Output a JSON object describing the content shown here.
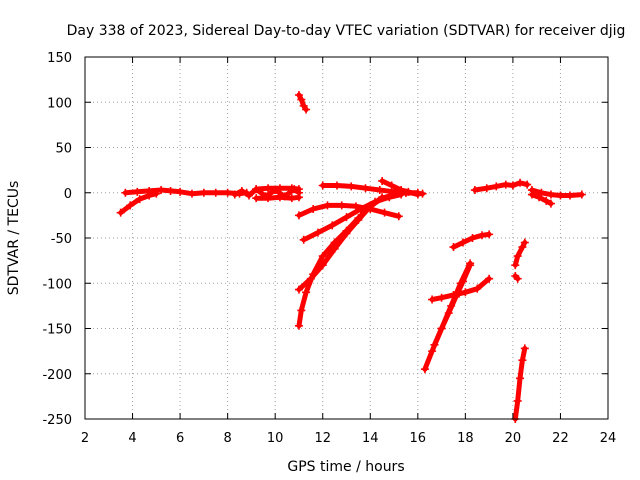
{
  "chart_data": {
    "type": "scatter",
    "title": "Day 338 of 2023, Sidereal Day-to-day VTEC variation (SDTVAR) for receiver djig",
    "xlabel": "GPS time / hours",
    "ylabel": "SDTVAR / TECUs",
    "xlim": [
      2,
      24
    ],
    "ylim": [
      -250,
      150
    ],
    "xticks": [
      2,
      4,
      6,
      8,
      10,
      12,
      14,
      16,
      18,
      20,
      22,
      24
    ],
    "yticks": [
      -250,
      -200,
      -150,
      -100,
      -50,
      0,
      50,
      100,
      150
    ],
    "grid": true,
    "marker": "+",
    "color": "#ff0000",
    "series": [
      {
        "points": [
          [
            3.5,
            -22
          ],
          [
            3.9,
            -14
          ],
          [
            4.3,
            -7
          ],
          [
            4.7,
            -3
          ],
          [
            5.0,
            -1
          ]
        ]
      },
      {
        "points": [
          [
            3.7,
            0
          ],
          [
            4.2,
            1
          ],
          [
            4.7,
            2
          ],
          [
            5.2,
            3
          ],
          [
            5.6,
            2
          ],
          [
            6.0,
            1
          ],
          [
            6.5,
            -1
          ],
          [
            7.0,
            0
          ],
          [
            7.5,
            0
          ],
          [
            8.0,
            0
          ],
          [
            8.5,
            -1
          ],
          [
            8.8,
            0
          ]
        ]
      },
      {
        "points": [
          [
            8.3,
            -2
          ],
          [
            8.6,
            2
          ],
          [
            8.9,
            -3
          ],
          [
            9.2,
            4
          ],
          [
            9.6,
            -4
          ],
          [
            10.0,
            3
          ],
          [
            10.4,
            -4
          ],
          [
            10.8,
            4
          ],
          [
            11.0,
            0
          ]
        ]
      },
      {
        "points": [
          [
            9.2,
            4
          ],
          [
            9.7,
            5
          ],
          [
            10.2,
            5
          ],
          [
            10.7,
            5
          ],
          [
            11.0,
            4
          ]
        ]
      },
      {
        "points": [
          [
            9.2,
            -6
          ],
          [
            9.7,
            -6
          ],
          [
            10.2,
            -5
          ],
          [
            10.7,
            -6
          ],
          [
            11.0,
            -5
          ]
        ]
      },
      {
        "points": [
          [
            11.0,
            108
          ],
          [
            11.1,
            103
          ],
          [
            11.2,
            96
          ],
          [
            11.3,
            92
          ]
        ]
      },
      {
        "points": [
          [
            11.0,
            -147
          ],
          [
            11.1,
            -130
          ],
          [
            11.3,
            -110
          ],
          [
            11.6,
            -90
          ],
          [
            12.0,
            -70
          ],
          [
            12.5,
            -55
          ],
          [
            13.0,
            -42
          ],
          [
            13.5,
            -28
          ],
          [
            14.0,
            -15
          ],
          [
            14.5,
            -6
          ],
          [
            15.0,
            -2
          ],
          [
            15.5,
            0
          ],
          [
            16.0,
            0
          ]
        ]
      },
      {
        "points": [
          [
            11.0,
            -107
          ],
          [
            11.5,
            -95
          ],
          [
            12.0,
            -80
          ],
          [
            12.5,
            -62
          ],
          [
            13.0,
            -45
          ],
          [
            13.5,
            -30
          ],
          [
            14.0,
            -15
          ],
          [
            14.5,
            -5
          ]
        ]
      },
      {
        "points": [
          [
            11.2,
            -52
          ],
          [
            11.8,
            -44
          ],
          [
            12.4,
            -36
          ],
          [
            13.0,
            -27
          ],
          [
            13.6,
            -18
          ],
          [
            14.2,
            -10
          ],
          [
            14.8,
            -5
          ],
          [
            15.3,
            -2
          ]
        ]
      },
      {
        "points": [
          [
            11.0,
            -25
          ],
          [
            11.6,
            -18
          ],
          [
            12.2,
            -14
          ],
          [
            12.8,
            -14
          ],
          [
            13.4,
            -15
          ],
          [
            14.0,
            -18
          ],
          [
            14.6,
            -22
          ],
          [
            15.2,
            -26
          ]
        ]
      },
      {
        "points": [
          [
            12.0,
            8
          ],
          [
            12.6,
            8
          ],
          [
            13.2,
            7
          ],
          [
            13.8,
            5
          ],
          [
            14.4,
            3
          ],
          [
            15.0,
            1
          ],
          [
            15.5,
            0
          ],
          [
            16.2,
            -1
          ]
        ]
      },
      {
        "points": [
          [
            14.5,
            13
          ],
          [
            14.9,
            8
          ],
          [
            15.3,
            3
          ],
          [
            15.6,
            1
          ],
          [
            16.0,
            -2
          ]
        ]
      },
      {
        "points": [
          [
            16.3,
            -195
          ],
          [
            16.6,
            -175
          ],
          [
            17.0,
            -150
          ],
          [
            17.4,
            -125
          ],
          [
            17.8,
            -100
          ],
          [
            18.2,
            -78
          ]
        ]
      },
      {
        "points": [
          [
            16.7,
            -168
          ],
          [
            17.0,
            -150
          ],
          [
            17.3,
            -133
          ],
          [
            17.6,
            -115
          ],
          [
            17.9,
            -98
          ],
          [
            18.2,
            -80
          ]
        ]
      },
      {
        "points": [
          [
            16.6,
            -118
          ],
          [
            17.0,
            -116
          ],
          [
            17.5,
            -113
          ],
          [
            18.0,
            -110
          ],
          [
            18.5,
            -106
          ],
          [
            19.0,
            -95
          ]
        ]
      },
      {
        "points": [
          [
            17.5,
            -60
          ],
          [
            17.9,
            -55
          ],
          [
            18.3,
            -50
          ],
          [
            18.7,
            -47
          ],
          [
            19.0,
            -46
          ]
        ]
      },
      {
        "points": [
          [
            18.4,
            3
          ],
          [
            18.9,
            5
          ],
          [
            19.3,
            7
          ],
          [
            19.7,
            9
          ],
          [
            20.0,
            8
          ],
          [
            20.3,
            11
          ],
          [
            20.6,
            9
          ]
        ]
      },
      {
        "points": [
          [
            20.1,
            -80
          ],
          [
            20.2,
            -70
          ],
          [
            20.4,
            -60
          ],
          [
            20.5,
            -55
          ]
        ]
      },
      {
        "points": [
          [
            20.1,
            -92
          ],
          [
            20.2,
            -95
          ]
        ]
      },
      {
        "points": [
          [
            20.1,
            -250
          ],
          [
            20.2,
            -230
          ],
          [
            20.3,
            -205
          ],
          [
            20.4,
            -185
          ],
          [
            20.5,
            -172
          ]
        ]
      },
      {
        "points": [
          [
            20.8,
            3
          ],
          [
            21.2,
            0
          ],
          [
            21.6,
            -2
          ],
          [
            22.0,
            -3
          ],
          [
            22.4,
            -3
          ],
          [
            22.9,
            -2
          ]
        ]
      },
      {
        "points": [
          [
            20.8,
            -2
          ],
          [
            21.1,
            -5
          ],
          [
            21.4,
            -9
          ],
          [
            21.6,
            -12
          ]
        ]
      }
    ]
  }
}
